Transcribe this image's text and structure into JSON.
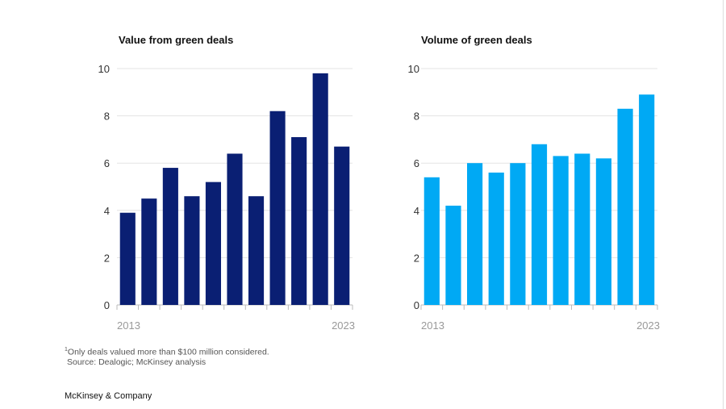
{
  "chart_data": [
    {
      "type": "bar",
      "title": "Value from green deals",
      "categories": [
        "2013",
        "2014",
        "2015",
        "2016",
        "2017",
        "2018",
        "2019",
        "2020",
        "2021",
        "2022",
        "2023"
      ],
      "x_tick_labels": [
        "2013",
        "2023"
      ],
      "values": [
        3.9,
        4.5,
        5.8,
        4.6,
        5.2,
        6.4,
        4.6,
        8.2,
        7.1,
        9.8,
        6.7
      ],
      "ylim": [
        0,
        10
      ],
      "yticks": [
        "0",
        "2",
        "4",
        "6",
        "8",
        "10"
      ],
      "grid": true,
      "color": "#0a1f73"
    },
    {
      "type": "bar",
      "title": "Volume of green deals",
      "categories": [
        "2013",
        "2014",
        "2015",
        "2016",
        "2017",
        "2018",
        "2019",
        "2020",
        "2021",
        "2022",
        "2023"
      ],
      "x_tick_labels": [
        "2013",
        "2023"
      ],
      "values": [
        5.4,
        4.2,
        6.0,
        5.6,
        6.0,
        6.8,
        6.3,
        6.4,
        6.2,
        8.3,
        8.9
      ],
      "ylim": [
        0,
        10
      ],
      "yticks": [
        "0",
        "2",
        "4",
        "6",
        "8",
        "10"
      ],
      "grid": true,
      "color": "#00a9f4"
    }
  ],
  "footnote": "Only deals valued more than $100 million considered.",
  "footnote_marker": "1",
  "source": "Source: Dealogic; McKinsey analysis",
  "brand": "McKinsey & Company"
}
